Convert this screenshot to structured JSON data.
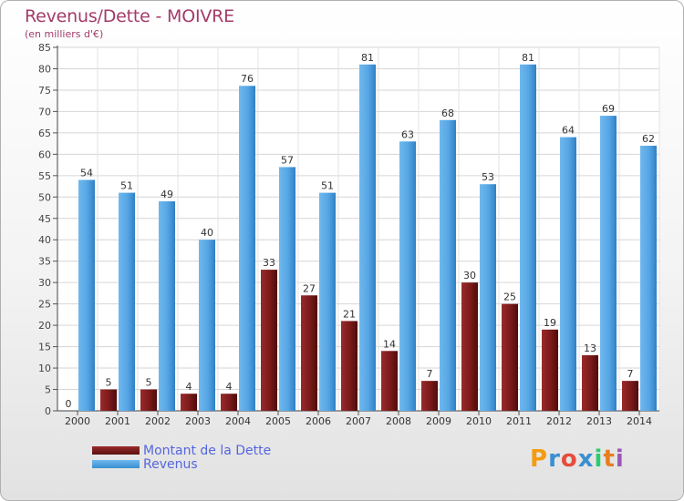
{
  "title": "Revenus/Dette - MOIVRE",
  "subtitle": "(en milliers d'€)",
  "logo": {
    "text": "Proxiti",
    "colors": [
      "#f39c12",
      "#3a8fd0",
      "#e74c3c",
      "#3a8fd0",
      "#2ecc71",
      "#e67e22",
      "#9b59b6"
    ]
  },
  "colors": {
    "debt": "#7a1a1a",
    "revenue": "#4fa3e3",
    "title": "#a33b6a",
    "legend_text": "#5566dd"
  },
  "chart_data": {
    "type": "bar",
    "title": "Revenus/Dette - MOIVRE",
    "subtitle": "(en milliers d'€)",
    "xlabel": "",
    "ylabel": "",
    "ylim": [
      0,
      85
    ],
    "yticks": [
      0,
      5,
      10,
      15,
      20,
      25,
      30,
      35,
      40,
      45,
      50,
      55,
      60,
      65,
      70,
      75,
      80,
      85
    ],
    "grid": true,
    "legend_position": "bottom-left",
    "categories": [
      "2000",
      "2001",
      "2002",
      "2003",
      "2004",
      "2005",
      "2006",
      "2007",
      "2008",
      "2009",
      "2010",
      "2011",
      "2012",
      "2013",
      "2014"
    ],
    "series": [
      {
        "name": "Montant de la Dette",
        "color": "#7a1a1a",
        "values": [
          0,
          5,
          5,
          4,
          4,
          33,
          27,
          21,
          14,
          7,
          30,
          25,
          19,
          13,
          7
        ]
      },
      {
        "name": "Revenus",
        "color": "#4fa3e3",
        "values": [
          54,
          51,
          49,
          40,
          76,
          57,
          51,
          81,
          63,
          68,
          53,
          81,
          64,
          69,
          62
        ]
      }
    ]
  }
}
